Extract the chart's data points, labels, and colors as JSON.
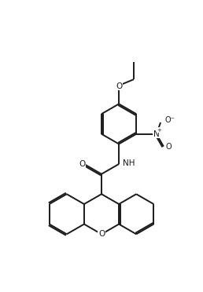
{
  "bg_color": "#ffffff",
  "line_color": "#1a1a1a",
  "line_width": 1.4,
  "fig_width": 2.58,
  "fig_height": 3.72,
  "dpi": 100,
  "xlim": [
    0,
    10
  ],
  "ylim": [
    0,
    14.4
  ]
}
